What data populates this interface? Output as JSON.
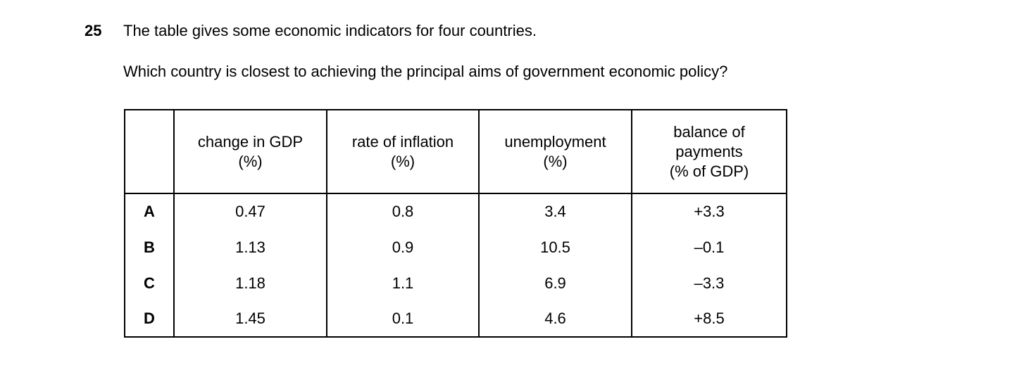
{
  "question": {
    "number": "25",
    "intro": "The table gives some economic indicators for four countries.",
    "prompt": "Which country is closest to achieving the principal aims of government economic policy?"
  },
  "table": {
    "headers": [
      "",
      "change in GDP\n(%)",
      "rate of inflation\n(%)",
      "unemployment\n(%)",
      "balance of\npayments\n(% of GDP)"
    ],
    "rows": [
      {
        "label": "A",
        "values": [
          "0.47",
          "0.8",
          "3.4",
          "+3.3"
        ]
      },
      {
        "label": "B",
        "values": [
          "1.13",
          "0.9",
          "10.5",
          "–0.1"
        ]
      },
      {
        "label": "C",
        "values": [
          "1.18",
          "1.1",
          "6.9",
          "–3.3"
        ]
      },
      {
        "label": "D",
        "values": [
          "1.45",
          "0.1",
          "4.6",
          "+8.5"
        ]
      }
    ]
  }
}
